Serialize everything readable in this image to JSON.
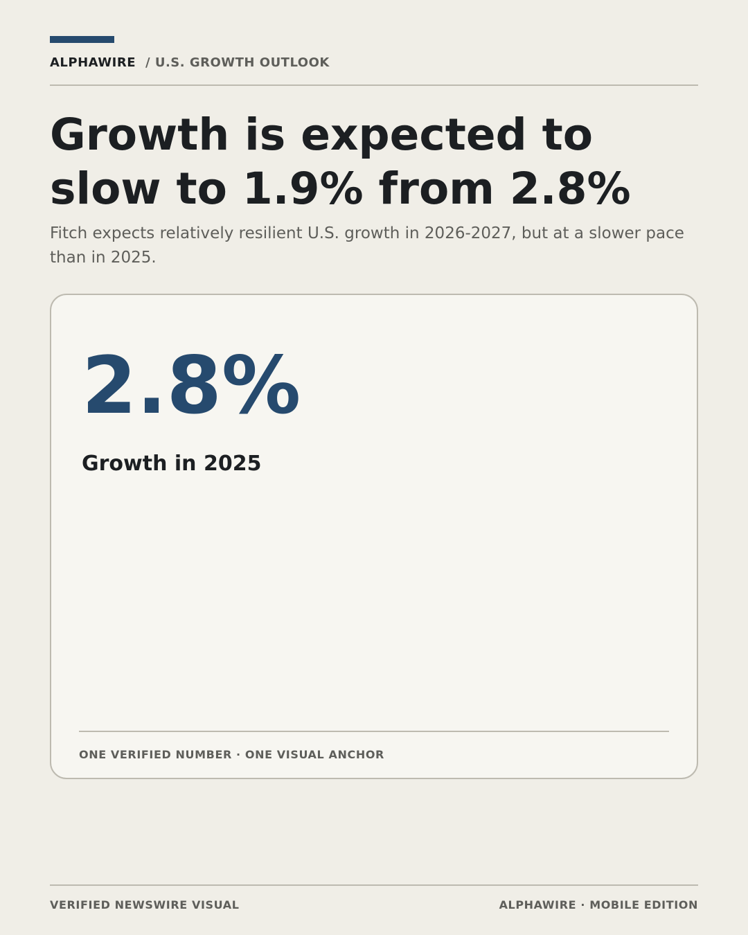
{
  "header": {
    "brand": "ALPHAWIRE",
    "section": "/ U.S. GROWTH OUTLOOK"
  },
  "headline": "Growth is expected to slow to 1.9% from 2.8%",
  "subtitle": "Fitch expects relatively resilient U.S. growth in 2026-2027, but at a slower pace than in 2025.",
  "card": {
    "value": "2.8%",
    "label": "Growth in 2025",
    "footnote": "ONE VERIFIED NUMBER · ONE VISUAL ANCHOR"
  },
  "footer": {
    "left": "VERIFIED NEWSWIRE VISUAL",
    "right": "ALPHAWIRE · MOBILE EDITION"
  }
}
